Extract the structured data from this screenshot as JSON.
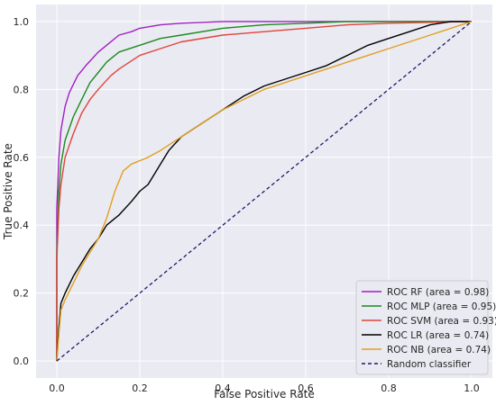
{
  "chart_data": {
    "type": "line",
    "xlabel": "False Positive Rate",
    "ylabel": "True Positive Rate",
    "xlim": [
      -0.05,
      1.05
    ],
    "ylim": [
      -0.05,
      1.05
    ],
    "x_ticks": [
      0.0,
      0.2,
      0.4,
      0.6,
      0.8,
      1.0
    ],
    "y_ticks": [
      0.0,
      0.2,
      0.4,
      0.6,
      0.8,
      1.0
    ],
    "x_tick_labels": [
      "0.0",
      "0.2",
      "0.4",
      "0.6",
      "0.8",
      "1.0"
    ],
    "y_tick_labels": [
      "0.0",
      "0.2",
      "0.4",
      "0.6",
      "0.8",
      "1.0"
    ],
    "grid": true,
    "background": "#eaeaf2",
    "legend_position": "lower-right",
    "series": [
      {
        "name": "ROC RF (area = 0.98)",
        "color": "#a020c0",
        "dash": "solid",
        "points": [
          [
            0,
            0
          ],
          [
            0,
            0.45
          ],
          [
            0.005,
            0.6
          ],
          [
            0.01,
            0.68
          ],
          [
            0.02,
            0.75
          ],
          [
            0.03,
            0.79
          ],
          [
            0.05,
            0.84
          ],
          [
            0.07,
            0.87
          ],
          [
            0.1,
            0.91
          ],
          [
            0.12,
            0.93
          ],
          [
            0.15,
            0.96
          ],
          [
            0.18,
            0.97
          ],
          [
            0.2,
            0.98
          ],
          [
            0.25,
            0.99
          ],
          [
            0.3,
            0.995
          ],
          [
            0.4,
            1.0
          ],
          [
            1.0,
            1.0
          ]
        ]
      },
      {
        "name": "ROC MLP (area = 0.95)",
        "color": "#1c8a1c",
        "dash": "solid",
        "points": [
          [
            0,
            0
          ],
          [
            0,
            0.32
          ],
          [
            0.005,
            0.5
          ],
          [
            0.01,
            0.58
          ],
          [
            0.02,
            0.65
          ],
          [
            0.04,
            0.72
          ],
          [
            0.06,
            0.77
          ],
          [
            0.08,
            0.82
          ],
          [
            0.1,
            0.85
          ],
          [
            0.12,
            0.88
          ],
          [
            0.15,
            0.91
          ],
          [
            0.2,
            0.93
          ],
          [
            0.25,
            0.95
          ],
          [
            0.3,
            0.96
          ],
          [
            0.4,
            0.98
          ],
          [
            0.5,
            0.99
          ],
          [
            0.6,
            0.995
          ],
          [
            0.7,
            1.0
          ],
          [
            1.0,
            1.0
          ]
        ]
      },
      {
        "name": "ROC SVM (area = 0.93)",
        "color": "#e0443a",
        "dash": "solid",
        "points": [
          [
            0,
            0
          ],
          [
            0,
            0.3
          ],
          [
            0.005,
            0.45
          ],
          [
            0.01,
            0.52
          ],
          [
            0.02,
            0.6
          ],
          [
            0.04,
            0.67
          ],
          [
            0.06,
            0.73
          ],
          [
            0.08,
            0.77
          ],
          [
            0.1,
            0.8
          ],
          [
            0.13,
            0.84
          ],
          [
            0.15,
            0.86
          ],
          [
            0.2,
            0.9
          ],
          [
            0.25,
            0.92
          ],
          [
            0.3,
            0.94
          ],
          [
            0.4,
            0.96
          ],
          [
            0.5,
            0.97
          ],
          [
            0.6,
            0.98
          ],
          [
            0.7,
            0.99
          ],
          [
            0.8,
            0.995
          ],
          [
            1.0,
            1.0
          ]
        ]
      },
      {
        "name": "ROC LR (area = 0.74)",
        "color": "#000000",
        "dash": "solid",
        "points": [
          [
            0,
            0
          ],
          [
            0.005,
            0.1
          ],
          [
            0.01,
            0.17
          ],
          [
            0.02,
            0.2
          ],
          [
            0.04,
            0.25
          ],
          [
            0.06,
            0.29
          ],
          [
            0.08,
            0.33
          ],
          [
            0.1,
            0.36
          ],
          [
            0.12,
            0.4
          ],
          [
            0.15,
            0.43
          ],
          [
            0.18,
            0.47
          ],
          [
            0.2,
            0.5
          ],
          [
            0.22,
            0.52
          ],
          [
            0.25,
            0.58
          ],
          [
            0.27,
            0.62
          ],
          [
            0.3,
            0.66
          ],
          [
            0.35,
            0.7
          ],
          [
            0.4,
            0.74
          ],
          [
            0.45,
            0.78
          ],
          [
            0.5,
            0.81
          ],
          [
            0.55,
            0.83
          ],
          [
            0.6,
            0.85
          ],
          [
            0.65,
            0.87
          ],
          [
            0.7,
            0.9
          ],
          [
            0.75,
            0.93
          ],
          [
            0.8,
            0.95
          ],
          [
            0.85,
            0.97
          ],
          [
            0.9,
            0.99
          ],
          [
            0.95,
            1.0
          ],
          [
            1.0,
            1.0
          ]
        ]
      },
      {
        "name": "ROC NB (area = 0.74)",
        "color": "#e0a020",
        "dash": "solid",
        "points": [
          [
            0,
            0
          ],
          [
            0.005,
            0.08
          ],
          [
            0.01,
            0.15
          ],
          [
            0.02,
            0.18
          ],
          [
            0.04,
            0.23
          ],
          [
            0.06,
            0.28
          ],
          [
            0.08,
            0.32
          ],
          [
            0.1,
            0.36
          ],
          [
            0.12,
            0.42
          ],
          [
            0.14,
            0.5
          ],
          [
            0.16,
            0.56
          ],
          [
            0.18,
            0.58
          ],
          [
            0.22,
            0.6
          ],
          [
            0.25,
            0.62
          ],
          [
            0.3,
            0.66
          ],
          [
            0.35,
            0.7
          ],
          [
            0.4,
            0.74
          ],
          [
            0.45,
            0.77
          ],
          [
            0.5,
            0.8
          ],
          [
            0.55,
            0.82
          ],
          [
            0.6,
            0.84
          ],
          [
            0.65,
            0.86
          ],
          [
            0.7,
            0.88
          ],
          [
            0.75,
            0.9
          ],
          [
            0.8,
            0.92
          ],
          [
            0.85,
            0.94
          ],
          [
            0.9,
            0.96
          ],
          [
            0.95,
            0.98
          ],
          [
            1.0,
            1.0
          ]
        ]
      },
      {
        "name": "Random classifier",
        "color": "#1a1a6e",
        "dash": "dashed",
        "points": [
          [
            0,
            0
          ],
          [
            1,
            1
          ]
        ]
      }
    ]
  }
}
